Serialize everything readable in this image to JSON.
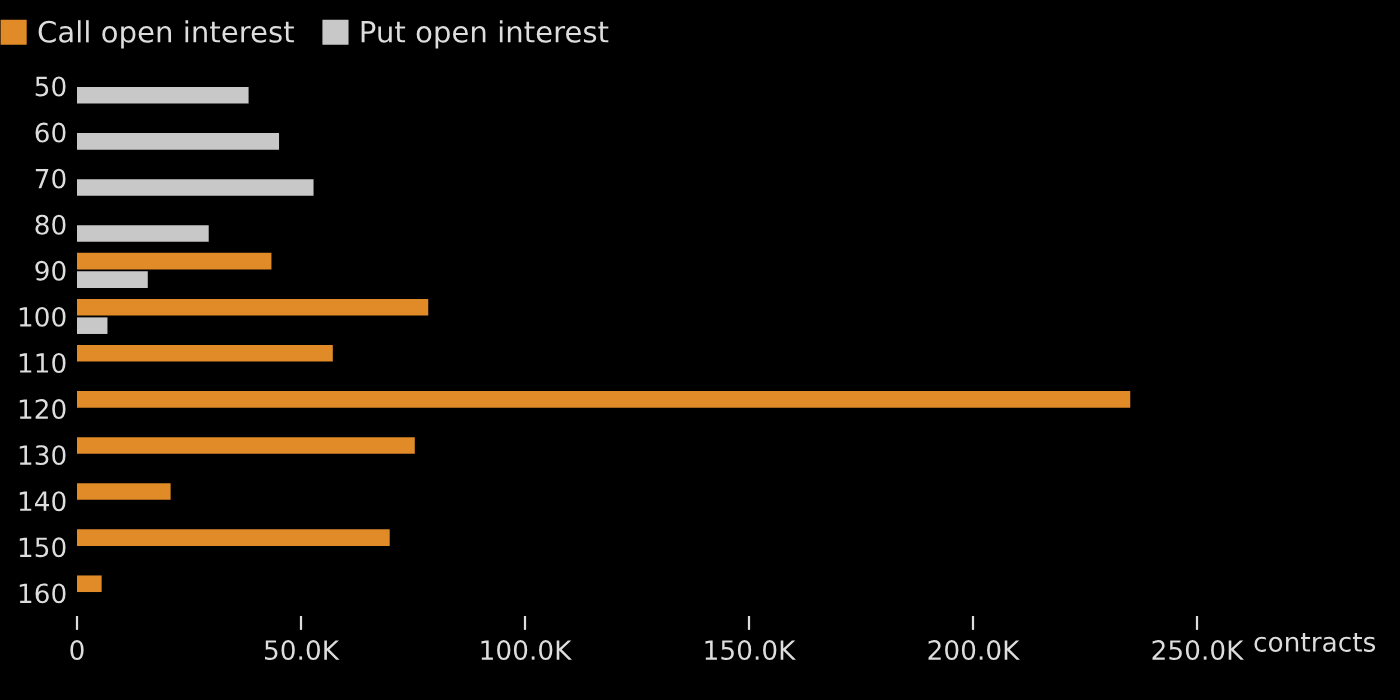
{
  "chart_data": {
    "type": "bar",
    "orientation": "horizontal",
    "xlabel": "contracts",
    "categories": [
      "50",
      "60",
      "70",
      "80",
      "90",
      "100",
      "110",
      "120",
      "130",
      "140",
      "150",
      "160"
    ],
    "series": [
      {
        "name": "Call open interest",
        "color": "#e08a28",
        "values": [
          null,
          null,
          null,
          null,
          43400,
          78400,
          57100,
          235100,
          75400,
          20900,
          69800,
          5500
        ]
      },
      {
        "name": "Put open interest",
        "color": "#c8c8c8",
        "values": [
          38300,
          45100,
          52800,
          29400,
          15800,
          6800,
          null,
          null,
          null,
          null,
          null,
          null
        ]
      }
    ],
    "xlim": [
      0,
      250000
    ],
    "xticks": [
      0,
      {
        "value": 50000,
        "label": "50.0K"
      },
      {
        "value": 100000,
        "label": "100.0K"
      },
      {
        "value": 150000,
        "label": "150.0K"
      },
      {
        "value": 200000,
        "label": "200.0K"
      },
      {
        "value": 250000,
        "label": "250.0K"
      }
    ],
    "legend": "top left",
    "grid": false
  }
}
